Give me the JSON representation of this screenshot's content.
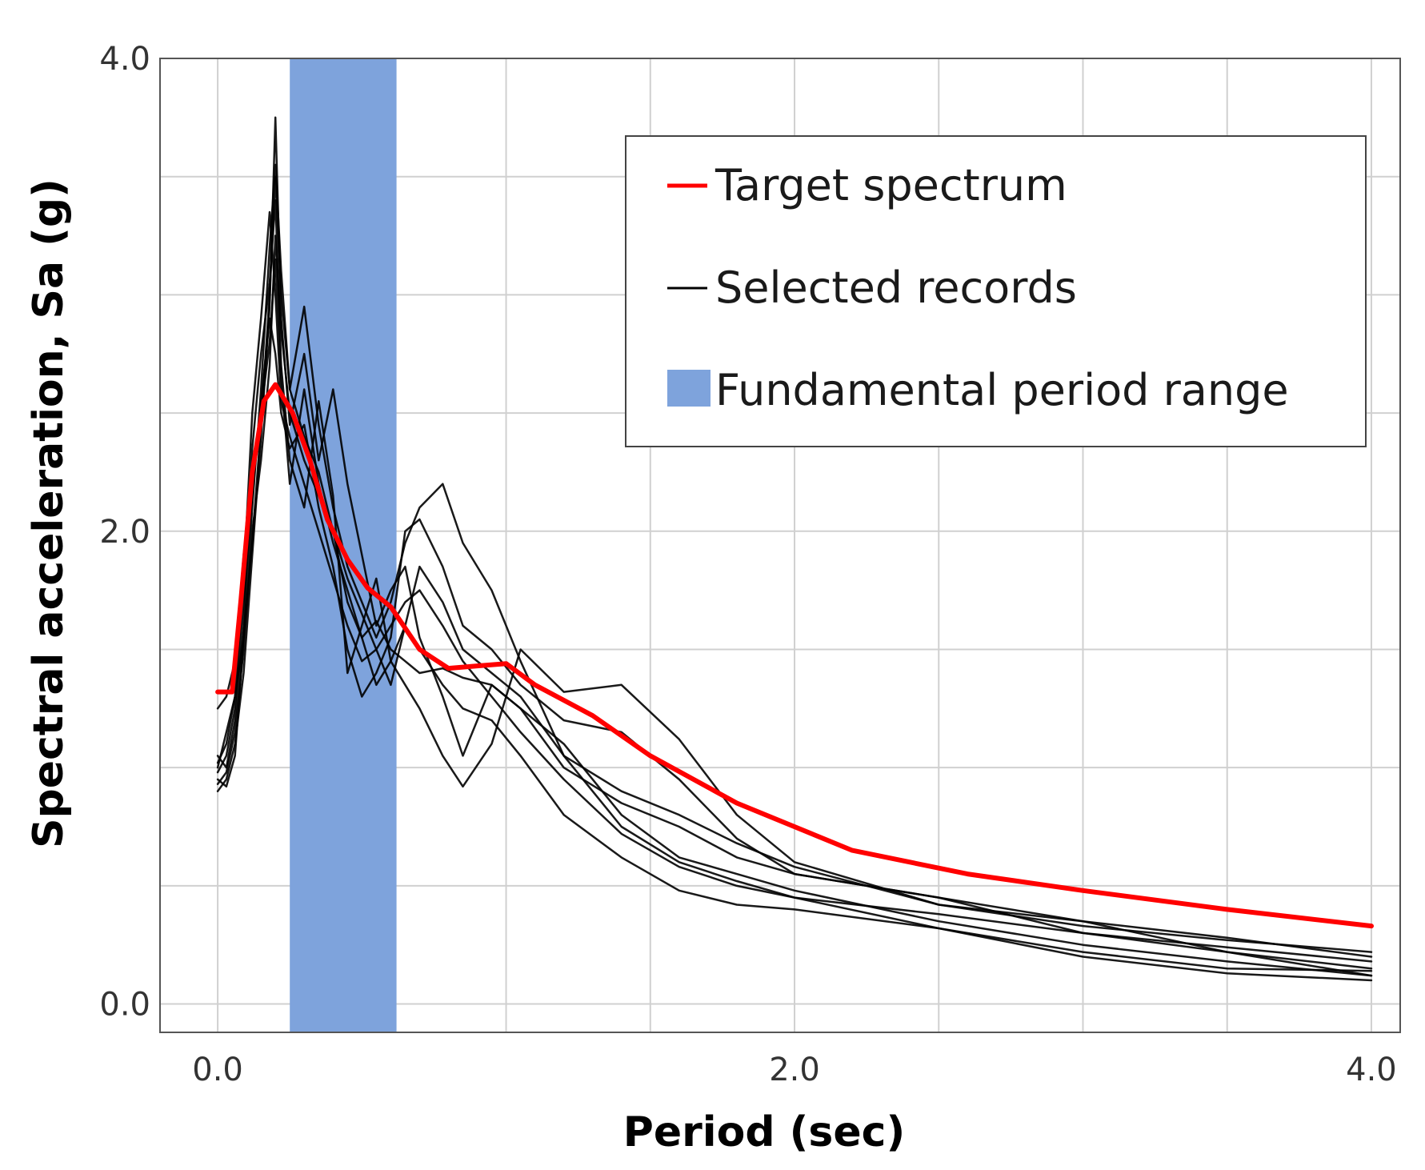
{
  "chart_data": {
    "type": "line",
    "title": "",
    "xlabel": "Period (sec)",
    "ylabel": "Spectral acceleration, Sa (g)",
    "xlim": [
      -0.2,
      4.1
    ],
    "ylim": [
      -0.12,
      4.0
    ],
    "xticks": [
      0.0,
      2.0,
      4.0
    ],
    "xtick_labels": [
      "0.0",
      "2.0",
      "4.0"
    ],
    "yticks": [
      0.0,
      2.0,
      4.0
    ],
    "ytick_labels": [
      "0.0",
      "2.0",
      "4.0"
    ],
    "x_grid_step": 0.5,
    "y_grid_step": 0.5,
    "legend_position": "top-right",
    "legend": [
      {
        "label": "Target spectrum",
        "kind": "line",
        "color": "#ff0000"
      },
      {
        "label": "Selected records",
        "kind": "line",
        "color": "#000000"
      },
      {
        "label": "Fundamental period range",
        "kind": "patch",
        "color": "#7ea3dc"
      }
    ],
    "band": {
      "name": "Fundamental period range",
      "x_start": 0.25,
      "x_end": 0.62
    },
    "series": [
      {
        "name": "Target spectrum",
        "color": "#ff0000",
        "points": [
          [
            0.0,
            1.32
          ],
          [
            0.05,
            1.32
          ],
          [
            0.08,
            1.7
          ],
          [
            0.12,
            2.25
          ],
          [
            0.16,
            2.55
          ],
          [
            0.2,
            2.62
          ],
          [
            0.26,
            2.5
          ],
          [
            0.32,
            2.3
          ],
          [
            0.38,
            2.05
          ],
          [
            0.45,
            1.88
          ],
          [
            0.52,
            1.76
          ],
          [
            0.6,
            1.68
          ],
          [
            0.7,
            1.5
          ],
          [
            0.8,
            1.42
          ],
          [
            0.9,
            1.43
          ],
          [
            1.0,
            1.44
          ],
          [
            1.1,
            1.35
          ],
          [
            1.3,
            1.22
          ],
          [
            1.5,
            1.05
          ],
          [
            1.8,
            0.85
          ],
          [
            2.2,
            0.65
          ],
          [
            2.6,
            0.55
          ],
          [
            3.0,
            0.48
          ],
          [
            3.5,
            0.4
          ],
          [
            4.0,
            0.33
          ]
        ]
      },
      {
        "name": "Selected records",
        "color": "#000000",
        "points": [
          [
            0.0,
            0.95
          ],
          [
            0.03,
            0.92
          ],
          [
            0.06,
            1.05
          ],
          [
            0.09,
            1.55
          ],
          [
            0.12,
            2.1
          ],
          [
            0.15,
            2.6
          ],
          [
            0.18,
            3.2
          ],
          [
            0.2,
            3.55
          ],
          [
            0.22,
            3.1
          ],
          [
            0.25,
            2.6
          ],
          [
            0.3,
            2.95
          ],
          [
            0.35,
            2.45
          ],
          [
            0.4,
            2.1
          ],
          [
            0.45,
            1.85
          ],
          [
            0.5,
            1.7
          ],
          [
            0.55,
            1.55
          ],
          [
            0.6,
            1.7
          ],
          [
            0.65,
            1.95
          ],
          [
            0.7,
            2.1
          ],
          [
            0.78,
            2.2
          ],
          [
            0.85,
            1.95
          ],
          [
            0.95,
            1.75
          ],
          [
            1.05,
            1.45
          ],
          [
            1.2,
            1.05
          ],
          [
            1.4,
            0.75
          ],
          [
            1.6,
            0.6
          ],
          [
            1.8,
            0.52
          ],
          [
            2.0,
            0.45
          ],
          [
            2.5,
            0.32
          ],
          [
            3.0,
            0.2
          ],
          [
            3.5,
            0.13
          ],
          [
            4.0,
            0.1
          ]
        ]
      },
      {
        "name": "Selected records",
        "color": "#000000",
        "points": [
          [
            0.0,
            0.9
          ],
          [
            0.03,
            0.95
          ],
          [
            0.06,
            1.1
          ],
          [
            0.09,
            1.4
          ],
          [
            0.12,
            1.9
          ],
          [
            0.15,
            2.4
          ],
          [
            0.18,
            2.95
          ],
          [
            0.2,
            3.75
          ],
          [
            0.22,
            2.9
          ],
          [
            0.25,
            2.45
          ],
          [
            0.3,
            2.75
          ],
          [
            0.35,
            2.3
          ],
          [
            0.4,
            2.6
          ],
          [
            0.45,
            2.2
          ],
          [
            0.5,
            1.9
          ],
          [
            0.55,
            1.6
          ],
          [
            0.6,
            1.75
          ],
          [
            0.65,
            1.85
          ],
          [
            0.7,
            1.55
          ],
          [
            0.78,
            1.3
          ],
          [
            0.85,
            1.05
          ],
          [
            0.95,
            1.35
          ],
          [
            1.05,
            1.25
          ],
          [
            1.2,
            1.1
          ],
          [
            1.4,
            0.8
          ],
          [
            1.6,
            0.62
          ],
          [
            1.8,
            0.55
          ],
          [
            2.0,
            0.48
          ],
          [
            2.5,
            0.35
          ],
          [
            3.0,
            0.25
          ],
          [
            3.5,
            0.18
          ],
          [
            4.0,
            0.12
          ]
        ]
      },
      {
        "name": "Selected records",
        "color": "#000000",
        "points": [
          [
            0.0,
            1.05
          ],
          [
            0.03,
            1.0
          ],
          [
            0.06,
            1.2
          ],
          [
            0.09,
            1.6
          ],
          [
            0.12,
            2.35
          ],
          [
            0.15,
            2.75
          ],
          [
            0.18,
            3.05
          ],
          [
            0.2,
            3.4
          ],
          [
            0.22,
            2.7
          ],
          [
            0.25,
            2.3
          ],
          [
            0.3,
            2.1
          ],
          [
            0.35,
            2.55
          ],
          [
            0.4,
            2.15
          ],
          [
            0.45,
            1.4
          ],
          [
            0.5,
            1.6
          ],
          [
            0.55,
            1.8
          ],
          [
            0.6,
            1.45
          ],
          [
            0.65,
            1.35
          ],
          [
            0.7,
            1.25
          ],
          [
            0.78,
            1.05
          ],
          [
            0.85,
            0.92
          ],
          [
            0.95,
            1.1
          ],
          [
            1.05,
            1.5
          ],
          [
            1.2,
            1.32
          ],
          [
            1.4,
            1.35
          ],
          [
            1.6,
            1.12
          ],
          [
            1.8,
            0.8
          ],
          [
            2.0,
            0.6
          ],
          [
            2.5,
            0.42
          ],
          [
            3.0,
            0.35
          ],
          [
            3.5,
            0.28
          ],
          [
            4.0,
            0.2
          ]
        ]
      },
      {
        "name": "Selected records",
        "color": "#000000",
        "points": [
          [
            0.0,
            1.0
          ],
          [
            0.03,
            1.15
          ],
          [
            0.06,
            1.3
          ],
          [
            0.09,
            1.8
          ],
          [
            0.12,
            2.5
          ],
          [
            0.15,
            2.9
          ],
          [
            0.18,
            3.35
          ],
          [
            0.2,
            3.0
          ],
          [
            0.22,
            2.55
          ],
          [
            0.25,
            2.4
          ],
          [
            0.3,
            2.2
          ],
          [
            0.35,
            2.0
          ],
          [
            0.4,
            1.8
          ],
          [
            0.45,
            1.6
          ],
          [
            0.5,
            1.45
          ],
          [
            0.55,
            1.5
          ],
          [
            0.6,
            1.6
          ],
          [
            0.65,
            1.7
          ],
          [
            0.7,
            1.75
          ],
          [
            0.78,
            1.6
          ],
          [
            0.85,
            1.45
          ],
          [
            0.95,
            1.3
          ],
          [
            1.05,
            1.15
          ],
          [
            1.2,
            0.95
          ],
          [
            1.4,
            0.72
          ],
          [
            1.6,
            0.58
          ],
          [
            1.8,
            0.5
          ],
          [
            2.0,
            0.45
          ],
          [
            2.5,
            0.38
          ],
          [
            3.0,
            0.3
          ],
          [
            3.5,
            0.24
          ],
          [
            4.0,
            0.18
          ]
        ]
      },
      {
        "name": "Selected records",
        "color": "#000000",
        "points": [
          [
            0.0,
            1.25
          ],
          [
            0.03,
            1.3
          ],
          [
            0.06,
            1.45
          ],
          [
            0.09,
            1.9
          ],
          [
            0.12,
            2.2
          ],
          [
            0.15,
            2.5
          ],
          [
            0.18,
            2.8
          ],
          [
            0.2,
            3.15
          ],
          [
            0.22,
            2.65
          ],
          [
            0.25,
            2.2
          ],
          [
            0.3,
            2.6
          ],
          [
            0.35,
            2.2
          ],
          [
            0.4,
            1.95
          ],
          [
            0.45,
            1.75
          ],
          [
            0.5,
            1.55
          ],
          [
            0.55,
            1.35
          ],
          [
            0.6,
            1.45
          ],
          [
            0.65,
            1.6
          ],
          [
            0.7,
            1.5
          ],
          [
            0.78,
            1.35
          ],
          [
            0.85,
            1.25
          ],
          [
            0.95,
            1.2
          ],
          [
            1.05,
            1.05
          ],
          [
            1.2,
            0.8
          ],
          [
            1.4,
            0.62
          ],
          [
            1.6,
            0.48
          ],
          [
            1.8,
            0.42
          ],
          [
            2.0,
            0.4
          ],
          [
            2.5,
            0.32
          ],
          [
            3.0,
            0.22
          ],
          [
            3.5,
            0.15
          ],
          [
            4.0,
            0.14
          ]
        ]
      },
      {
        "name": "Selected records",
        "color": "#000000",
        "points": [
          [
            0.0,
            0.98
          ],
          [
            0.03,
            1.05
          ],
          [
            0.06,
            1.25
          ],
          [
            0.09,
            1.7
          ],
          [
            0.12,
            2.15
          ],
          [
            0.15,
            2.55
          ],
          [
            0.18,
            2.9
          ],
          [
            0.2,
            2.75
          ],
          [
            0.22,
            2.5
          ],
          [
            0.25,
            2.35
          ],
          [
            0.3,
            2.45
          ],
          [
            0.35,
            2.1
          ],
          [
            0.4,
            1.85
          ],
          [
            0.45,
            1.5
          ],
          [
            0.5,
            1.3
          ],
          [
            0.55,
            1.4
          ],
          [
            0.6,
            1.55
          ],
          [
            0.65,
            2.0
          ],
          [
            0.7,
            2.05
          ],
          [
            0.78,
            1.85
          ],
          [
            0.85,
            1.6
          ],
          [
            0.95,
            1.5
          ],
          [
            1.05,
            1.35
          ],
          [
            1.2,
            1.2
          ],
          [
            1.4,
            1.15
          ],
          [
            1.6,
            0.95
          ],
          [
            1.8,
            0.7
          ],
          [
            2.0,
            0.55
          ],
          [
            2.5,
            0.45
          ],
          [
            3.0,
            0.3
          ],
          [
            3.5,
            0.22
          ],
          [
            4.0,
            0.15
          ]
        ]
      },
      {
        "name": "Selected records",
        "color": "#000000",
        "points": [
          [
            0.0,
            0.93
          ],
          [
            0.03,
            0.98
          ],
          [
            0.06,
            1.15
          ],
          [
            0.09,
            1.5
          ],
          [
            0.12,
            2.0
          ],
          [
            0.15,
            2.3
          ],
          [
            0.18,
            2.7
          ],
          [
            0.2,
            3.25
          ],
          [
            0.22,
            2.85
          ],
          [
            0.25,
            2.5
          ],
          [
            0.3,
            2.3
          ],
          [
            0.35,
            2.15
          ],
          [
            0.4,
            2.0
          ],
          [
            0.45,
            1.7
          ],
          [
            0.5,
            1.55
          ],
          [
            0.55,
            1.62
          ],
          [
            0.6,
            1.5
          ],
          [
            0.65,
            1.45
          ],
          [
            0.7,
            1.4
          ],
          [
            0.78,
            1.42
          ],
          [
            0.85,
            1.38
          ],
          [
            0.95,
            1.35
          ],
          [
            1.05,
            1.25
          ],
          [
            1.2,
            1.0
          ],
          [
            1.4,
            0.85
          ],
          [
            1.6,
            0.75
          ],
          [
            1.8,
            0.62
          ],
          [
            2.0,
            0.55
          ],
          [
            2.5,
            0.45
          ],
          [
            3.0,
            0.35
          ],
          [
            3.5,
            0.22
          ],
          [
            4.0,
            0.12
          ]
        ]
      },
      {
        "name": "Selected records",
        "color": "#000000",
        "points": [
          [
            0.0,
            1.02
          ],
          [
            0.03,
            1.1
          ],
          [
            0.06,
            1.3
          ],
          [
            0.09,
            1.55
          ],
          [
            0.12,
            1.95
          ],
          [
            0.15,
            2.45
          ],
          [
            0.18,
            3.0
          ],
          [
            0.2,
            3.5
          ],
          [
            0.22,
            3.0
          ],
          [
            0.25,
            2.6
          ],
          [
            0.3,
            2.4
          ],
          [
            0.35,
            2.25
          ],
          [
            0.4,
            2.0
          ],
          [
            0.45,
            1.8
          ],
          [
            0.5,
            1.65
          ],
          [
            0.55,
            1.5
          ],
          [
            0.6,
            1.35
          ],
          [
            0.65,
            1.6
          ],
          [
            0.7,
            1.85
          ],
          [
            0.78,
            1.7
          ],
          [
            0.85,
            1.5
          ],
          [
            0.95,
            1.4
          ],
          [
            1.05,
            1.3
          ],
          [
            1.2,
            1.05
          ],
          [
            1.4,
            0.9
          ],
          [
            1.6,
            0.8
          ],
          [
            1.8,
            0.68
          ],
          [
            2.0,
            0.58
          ],
          [
            2.5,
            0.42
          ],
          [
            3.0,
            0.33
          ],
          [
            3.5,
            0.27
          ],
          [
            4.0,
            0.22
          ]
        ]
      }
    ]
  }
}
